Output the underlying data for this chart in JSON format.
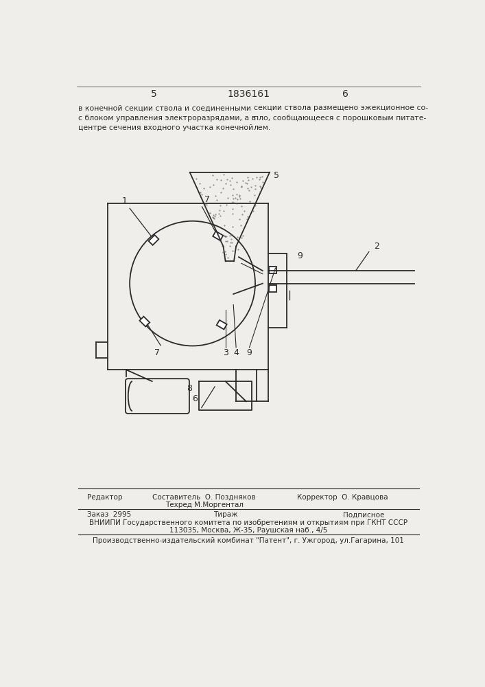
{
  "page_numbers": [
    "5",
    "1836161",
    "6"
  ],
  "text_left": "в конечной секции ствола и соединенными\nс блоком управления электроразрядами, а в\nцентре сечения входного участка конечной",
  "text_right": "секции ствола размещено эжекционное со-\nпло, сообщающееся с порошковым питате-\nлем.",
  "footer_editor": "Редактор",
  "footer_composer": "Составитель  О. Поздняков",
  "footer_corrector": "Корректор  О. Кравцова",
  "footer_techred": "Техред М.Моргентал",
  "footer_order": "Заказ  2995",
  "footer_tirazh": "Тираж",
  "footer_podpisnoe": "Подписное",
  "footer_vniip": "ВНИИПИ Государственного комитета по изобретениям и открытиям при ГКНТ СССР",
  "footer_address": "113035, Москва, Ж-35, Раушская наб., 4/5",
  "footer_production": "Производственно-издательский комбинат \"Патент\", г. Ужгород, ул.Гагарина, 101",
  "bg_color": "#f0eeea",
  "line_color": "#2a2a2a"
}
